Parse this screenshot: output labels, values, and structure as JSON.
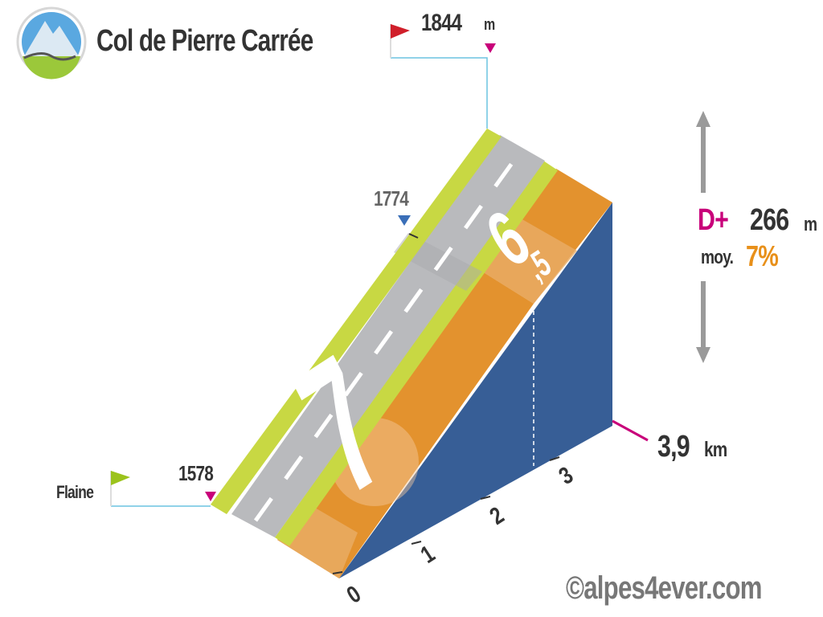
{
  "title": "Col de Pierre Carrée",
  "summit": {
    "altitude": "1844",
    "unit": "m"
  },
  "start": {
    "name": "Flaine",
    "altitude": "1578"
  },
  "intermediate": {
    "altitude": "1774"
  },
  "segments": [
    {
      "gradient_int": "7",
      "gradient_dec": ""
    },
    {
      "gradient_int": "6",
      "gradient_dec": ",5"
    }
  ],
  "stats": {
    "dplus_label": "D+",
    "dplus_value": "266",
    "dplus_unit": "m",
    "avg_label": "moy.",
    "avg_value": "7%"
  },
  "distance": {
    "value": "3,9",
    "unit": "km"
  },
  "km_ticks": [
    "0",
    "1",
    "2",
    "3"
  ],
  "credit": "©alpes4ever.com",
  "colors": {
    "road": "#b9babd",
    "road_edge": "#c8d843",
    "gradient_band": "#e3922e",
    "gradient_band_light": "#e8a85b",
    "side_wall": "#375e96",
    "pink": "#c8007a",
    "guide_line": "#6cc3e0",
    "text_dark": "#333333",
    "orange_text": "#e8901a"
  },
  "icons": [
    "mountain-logo-icon",
    "red-flag-icon",
    "green-flag-icon"
  ]
}
